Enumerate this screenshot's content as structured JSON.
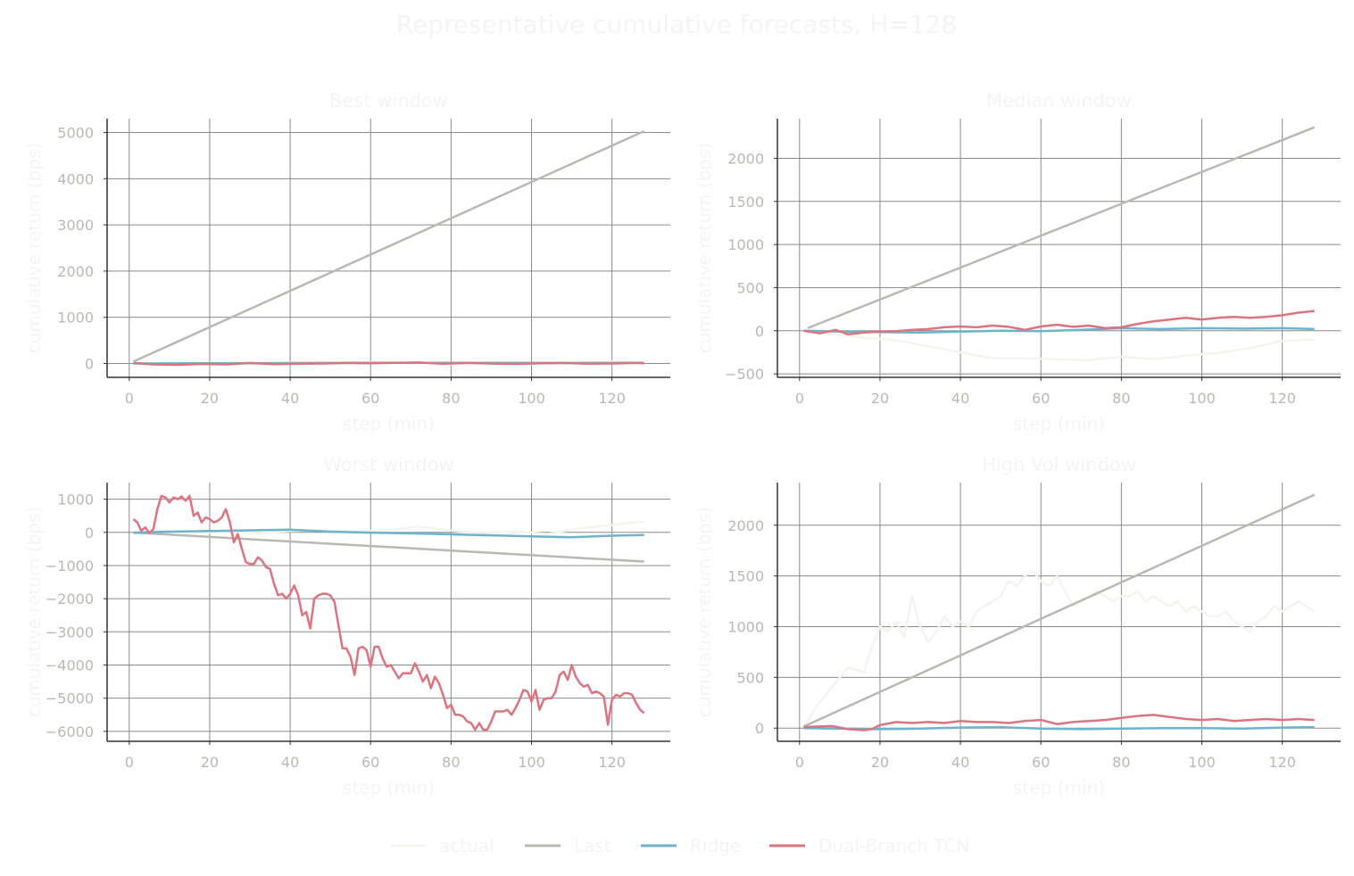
{
  "figure": {
    "title": "Representative cumulative forecasts, H=128"
  },
  "colors": {
    "actual": "#f4f4ee",
    "Last": "#b9b8b2",
    "Ridge": "#6db3cd",
    "Dual-Branch TCN": "#dc7480",
    "grid": "#8a8a8a",
    "axis": "#333333"
  },
  "legend": {
    "placement": "bottom-center",
    "items": [
      "actual",
      "Last",
      "Ridge",
      "Dual-Branch TCN"
    ]
  },
  "chart_data": [
    {
      "type": "line",
      "title": "Best window",
      "xlabel": "step (min)",
      "ylabel": "cumulative return (bps)",
      "xlim": [
        -5.5,
        134.5
      ],
      "ylim": [
        -300,
        5300
      ],
      "xticks": [
        0,
        20,
        40,
        60,
        80,
        100,
        120
      ],
      "yticks": [
        0,
        1000,
        2000,
        3000,
        4000,
        5000
      ],
      "grid": true,
      "series": [
        {
          "name": "actual",
          "x": [
            1,
            8,
            16,
            24,
            32,
            40,
            48,
            56,
            64,
            72,
            80,
            88,
            96,
            104,
            112,
            120,
            128
          ],
          "y": [
            10,
            -10,
            15,
            5,
            -20,
            20,
            10,
            30,
            20,
            10,
            -10,
            15,
            0,
            -10,
            20,
            40,
            30
          ]
        },
        {
          "name": "Last",
          "x": [
            1,
            128
          ],
          "y": [
            40,
            5030
          ]
        },
        {
          "name": "Ridge",
          "x": [
            1,
            16,
            32,
            48,
            64,
            80,
            96,
            112,
            128
          ],
          "y": [
            0,
            5,
            8,
            10,
            12,
            15,
            12,
            10,
            15
          ]
        },
        {
          "name": "Dual-Branch TCN",
          "x": [
            1,
            6,
            12,
            18,
            24,
            30,
            36,
            42,
            48,
            54,
            60,
            66,
            72,
            78,
            84,
            90,
            96,
            102,
            108,
            114,
            120,
            126,
            128
          ],
          "y": [
            10,
            -20,
            -30,
            -10,
            -20,
            10,
            -15,
            -5,
            0,
            10,
            5,
            15,
            20,
            -5,
            10,
            0,
            -10,
            5,
            10,
            -5,
            0,
            10,
            5
          ]
        }
      ]
    },
    {
      "type": "line",
      "title": "Median window",
      "xlabel": "step (min)",
      "ylabel": "cumulative return (bps)",
      "xlim": [
        -5.5,
        134.5
      ],
      "ylim": [
        -540,
        2460
      ],
      "xticks": [
        0,
        20,
        40,
        60,
        80,
        100,
        120
      ],
      "yticks": [
        -500,
        0,
        500,
        1000,
        1500,
        2000
      ],
      "grid": true,
      "series": [
        {
          "name": "actual",
          "x": [
            1,
            8,
            16,
            24,
            32,
            40,
            48,
            56,
            64,
            72,
            80,
            88,
            96,
            104,
            112,
            120,
            128
          ],
          "y": [
            0,
            -40,
            -80,
            -110,
            -180,
            -250,
            -320,
            -320,
            -330,
            -340,
            -300,
            -330,
            -290,
            -260,
            -200,
            -120,
            -100
          ]
        },
        {
          "name": "Last",
          "x": [
            2,
            128
          ],
          "y": [
            30,
            2360
          ]
        },
        {
          "name": "Ridge",
          "x": [
            1,
            10,
            20,
            30,
            40,
            50,
            60,
            70,
            80,
            90,
            100,
            110,
            120,
            128
          ],
          "y": [
            0,
            -10,
            -15,
            -20,
            -10,
            0,
            -5,
            10,
            30,
            20,
            30,
            25,
            30,
            20
          ]
        },
        {
          "name": "Dual-Branch TCN",
          "x": [
            1,
            5,
            9,
            12,
            16,
            20,
            24,
            28,
            32,
            36,
            40,
            44,
            48,
            52,
            56,
            60,
            64,
            68,
            72,
            76,
            80,
            84,
            88,
            92,
            96,
            100,
            104,
            108,
            112,
            116,
            120,
            124,
            128
          ],
          "y": [
            0,
            -30,
            10,
            -40,
            -20,
            -10,
            -5,
            10,
            20,
            40,
            50,
            40,
            60,
            45,
            10,
            50,
            70,
            45,
            60,
            30,
            40,
            80,
            110,
            130,
            150,
            130,
            150,
            160,
            150,
            160,
            180,
            210,
            230
          ]
        }
      ]
    },
    {
      "type": "line",
      "title": "Worst window",
      "xlabel": "step (min)",
      "ylabel": "cumulative return (bps)",
      "xlim": [
        -5.5,
        134.5
      ],
      "ylim": [
        -6300,
        1500
      ],
      "xticks": [
        0,
        20,
        40,
        60,
        80,
        100,
        120
      ],
      "yticks": [
        -6000,
        -5000,
        -4000,
        -3000,
        -2000,
        -1000,
        0,
        1000
      ],
      "grid": true,
      "series": [
        {
          "name": "actual",
          "x": [
            1,
            8,
            16,
            24,
            32,
            40,
            48,
            56,
            64,
            72,
            80,
            88,
            96,
            104,
            112,
            120,
            128
          ],
          "y": [
            0,
            40,
            -30,
            20,
            -20,
            40,
            60,
            30,
            60,
            180,
            50,
            -20,
            30,
            -50,
            120,
            220,
            330
          ]
        },
        {
          "name": "Last",
          "x": [
            1,
            128
          ],
          "y": [
            -7,
            -880
          ]
        },
        {
          "name": "Ridge",
          "x": [
            1,
            10,
            20,
            30,
            40,
            50,
            60,
            70,
            80,
            90,
            100,
            110,
            120,
            128
          ],
          "y": [
            -10,
            20,
            40,
            60,
            80,
            20,
            -10,
            -30,
            -60,
            -90,
            -120,
            -150,
            -100,
            -80
          ]
        },
        {
          "name": "Dual-Branch TCN",
          "x": [
            1,
            2,
            3,
            4,
            5,
            6,
            7,
            8,
            9,
            10,
            11,
            12,
            13,
            14,
            15,
            16,
            17,
            18,
            19,
            20,
            21,
            22,
            23,
            24,
            25,
            26,
            27,
            28,
            29,
            30,
            31,
            32,
            33,
            34,
            35,
            36,
            37,
            38,
            39,
            40,
            41,
            42,
            43,
            44,
            45,
            46,
            47,
            48,
            49,
            50,
            51,
            52,
            53,
            54,
            55,
            56,
            57,
            58,
            59,
            60,
            61,
            62,
            63,
            64,
            65,
            66,
            67,
            68,
            69,
            70,
            71,
            72,
            73,
            74,
            75,
            76,
            77,
            78,
            79,
            80,
            81,
            82,
            83,
            84,
            85,
            86,
            87,
            88,
            89,
            90,
            91,
            92,
            93,
            94,
            95,
            96,
            97,
            98,
            99,
            100,
            101,
            102,
            103,
            104,
            105,
            106,
            107,
            108,
            109,
            110,
            111,
            112,
            113,
            114,
            115,
            116,
            117,
            118,
            119,
            120,
            121,
            122,
            123,
            124,
            125,
            126,
            127,
            128
          ],
          "y": [
            400,
            300,
            50,
            150,
            -20,
            100,
            700,
            1100,
            1050,
            900,
            1050,
            1000,
            1080,
            950,
            1100,
            500,
            600,
            300,
            450,
            400,
            300,
            350,
            450,
            700,
            300,
            -300,
            -50,
            -500,
            -900,
            -950,
            -950,
            -750,
            -850,
            -1050,
            -1100,
            -1550,
            -1900,
            -1850,
            -2000,
            -1850,
            -1600,
            -1900,
            -2500,
            -2400,
            -2900,
            -2000,
            -1900,
            -1850,
            -1850,
            -1900,
            -2100,
            -2800,
            -3500,
            -3500,
            -3750,
            -4300,
            -3500,
            -3450,
            -3550,
            -4050,
            -3450,
            -3450,
            -3800,
            -4050,
            -4000,
            -4200,
            -4400,
            -4250,
            -4250,
            -4250,
            -3950,
            -4200,
            -4500,
            -4300,
            -4700,
            -4350,
            -4550,
            -4900,
            -5300,
            -5200,
            -5500,
            -5500,
            -5550,
            -5700,
            -5750,
            -5950,
            -5750,
            -5950,
            -5950,
            -5700,
            -5400,
            -5400,
            -5400,
            -5350,
            -5500,
            -5300,
            -5050,
            -4750,
            -4800,
            -5100,
            -4750,
            -5350,
            -5050,
            -5000,
            -5000,
            -4800,
            -4300,
            -4200,
            -4450,
            -4000,
            -4350,
            -4550,
            -4650,
            -4600,
            -4850,
            -4800,
            -4850,
            -4950,
            -5800,
            -5050,
            -4900,
            -4950,
            -4850,
            -4850,
            -4900,
            -5150,
            -5350,
            -5450
          ]
        }
      ]
    },
    {
      "type": "line",
      "title": "High Vol window",
      "xlabel": "step (min)",
      "ylabel": "cumulative return (bps)",
      "xlim": [
        -5.5,
        134.5
      ],
      "ylim": [
        -130,
        2420
      ],
      "xticks": [
        0,
        20,
        40,
        60,
        80,
        100,
        120
      ],
      "yticks": [
        0,
        500,
        1000,
        1500,
        2000
      ],
      "grid": true,
      "series": [
        {
          "name": "actual",
          "x": [
            1,
            4,
            8,
            12,
            16,
            18,
            20,
            22,
            24,
            26,
            28,
            30,
            32,
            34,
            36,
            38,
            40,
            42,
            44,
            46,
            48,
            50,
            52,
            54,
            56,
            58,
            60,
            62,
            64,
            66,
            68,
            70,
            72,
            74,
            76,
            78,
            80,
            82,
            84,
            86,
            88,
            90,
            92,
            94,
            96,
            98,
            100,
            102,
            104,
            106,
            108,
            110,
            112,
            114,
            116,
            118,
            120,
            122,
            124,
            126,
            128
          ],
          "y": [
            0,
            200,
            400,
            600,
            550,
            800,
            1000,
            950,
            1050,
            900,
            1300,
            1000,
            850,
            950,
            1100,
            1000,
            1050,
            1000,
            1150,
            1200,
            1250,
            1300,
            1450,
            1400,
            1500,
            1550,
            1450,
            1400,
            1500,
            1350,
            1200,
            1250,
            1300,
            1350,
            1300,
            1250,
            1300,
            1300,
            1350,
            1250,
            1300,
            1250,
            1200,
            1250,
            1150,
            1200,
            1150,
            1100,
            1100,
            1150,
            1050,
            1000,
            950,
            1050,
            1100,
            1200,
            1150,
            1200,
            1250,
            1200,
            1150
          ]
        },
        {
          "name": "Last",
          "x": [
            1,
            128
          ],
          "y": [
            15,
            2300
          ]
        },
        {
          "name": "Ridge",
          "x": [
            1,
            10,
            20,
            30,
            40,
            50,
            60,
            70,
            80,
            90,
            100,
            110,
            120,
            128
          ],
          "y": [
            0,
            -5,
            -10,
            -5,
            5,
            10,
            -5,
            -10,
            -5,
            0,
            0,
            -5,
            5,
            10
          ]
        },
        {
          "name": "Dual-Branch TCN",
          "x": [
            1,
            4,
            8,
            12,
            16,
            18,
            20,
            24,
            28,
            32,
            36,
            40,
            44,
            48,
            52,
            56,
            60,
            64,
            68,
            72,
            76,
            80,
            84,
            88,
            92,
            96,
            100,
            104,
            108,
            112,
            116,
            120,
            124,
            128
          ],
          "y": [
            10,
            15,
            20,
            -10,
            -20,
            -10,
            30,
            60,
            50,
            60,
            50,
            70,
            60,
            60,
            50,
            70,
            80,
            40,
            60,
            70,
            80,
            100,
            120,
            130,
            110,
            90,
            80,
            90,
            70,
            80,
            90,
            80,
            90,
            80
          ]
        }
      ]
    }
  ]
}
